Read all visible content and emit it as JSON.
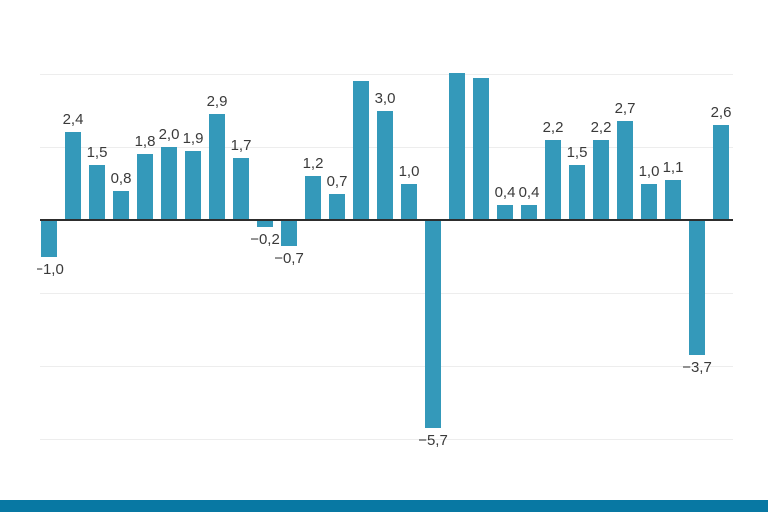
{
  "chart": {
    "bar_color": "#3499ba",
    "gridline_color": "#ededed",
    "zero_line_color": "#2d2d2d",
    "label_color": "#3a3a3a"
  },
  "footer": {
    "accent_color": "#0878a3"
  },
  "chart_data": {
    "type": "bar",
    "values": [
      -1.0,
      2.4,
      1.5,
      0.8,
      1.8,
      2.0,
      1.9,
      2.9,
      1.7,
      -0.2,
      -0.7,
      1.2,
      0.7,
      3.8,
      3.0,
      1.0,
      -5.7,
      4.2,
      3.9,
      0.4,
      0.4,
      2.2,
      1.5,
      2.2,
      2.7,
      1.0,
      1.1,
      -3.7,
      2.6
    ],
    "labels": [
      "−1,0",
      "2,4",
      "1,5",
      "0,8",
      "1,8",
      "2,0",
      "1,9",
      "2,9",
      "1,7",
      "−0,2",
      "−0,7",
      "1,2",
      "0,7",
      "",
      "3,0",
      "1,0",
      "−5,7",
      "",
      "",
      "0,4",
      "0,4",
      "2,2",
      "1,5",
      "2,2",
      "2,7",
      "1,0",
      "1,1",
      "−3,7",
      "2,6"
    ],
    "ylim": [
      -6,
      4
    ],
    "gridlines_y": [
      4,
      2,
      -2,
      -4,
      -6
    ],
    "zero_line": true,
    "grid": "horizontal",
    "legend": "none",
    "value_label_format": "decimal-comma",
    "layout_note": "plot window clipped at top (+4) and left edge; labels sit above positive bars and below negative bars"
  }
}
